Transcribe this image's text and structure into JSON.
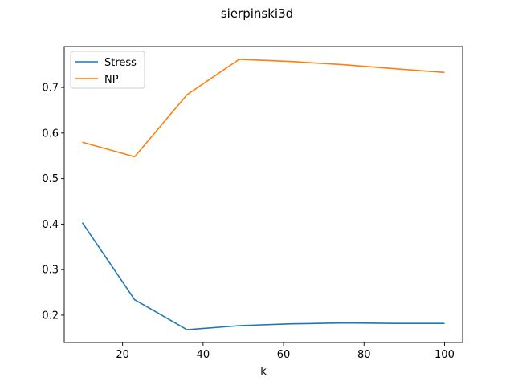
{
  "chart_data": {
    "type": "line",
    "title": "sierpinski3d",
    "xlabel": "k",
    "ylabel": "",
    "xlim": [
      5.5,
      104.5
    ],
    "ylim": [
      0.14,
      0.79
    ],
    "xticks": [
      20,
      40,
      60,
      80,
      100
    ],
    "yticks": [
      0.2,
      0.3,
      0.4,
      0.5,
      0.6,
      0.7
    ],
    "grid": false,
    "legend_position": "top-left",
    "series": [
      {
        "name": "Stress",
        "color": "#1f77b4",
        "x": [
          10,
          23,
          36,
          49,
          62,
          75,
          88,
          100
        ],
        "y": [
          0.403,
          0.234,
          0.168,
          0.177,
          0.181,
          0.183,
          0.182,
          0.182
        ]
      },
      {
        "name": "NP",
        "color": "#ff7f0e",
        "x": [
          10,
          23,
          36,
          49,
          62,
          75,
          88,
          100
        ],
        "y": [
          0.58,
          0.548,
          0.684,
          0.762,
          0.757,
          0.75,
          0.741,
          0.733
        ]
      }
    ]
  }
}
